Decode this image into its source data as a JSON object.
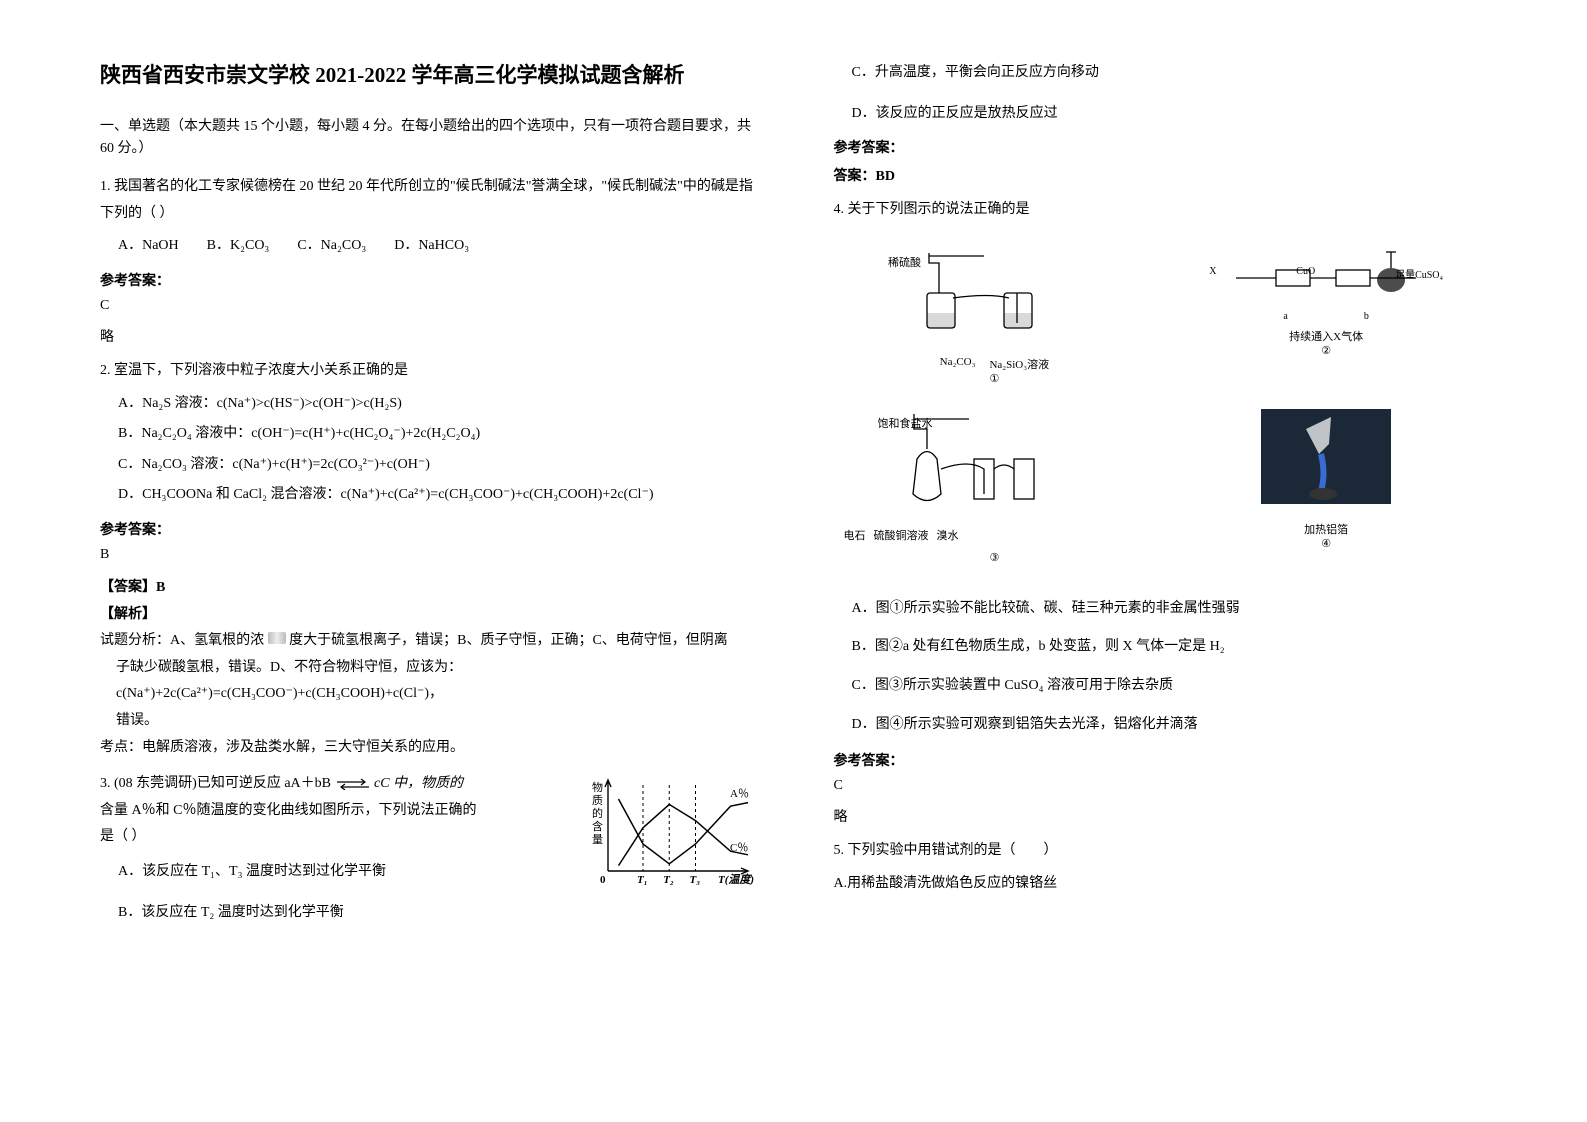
{
  "title": "陕西省西安市崇文学校 2021-2022 学年高三化学模拟试题含解析",
  "section_header": "一、单选题（本大题共 15 个小题，每小题 4 分。在每小题给出的四个选项中，只有一项符合题目要求，共 60 分。）",
  "answer_label": "参考答案：",
  "q1": {
    "stem": "1. 我国著名的化工专家候德榜在 20 世纪 20 年代所创立的\"候氏制碱法\"誉满全球，\"候氏制碱法\"中的碱是指下列的（  ）",
    "opts": {
      "A": "A．NaOH",
      "B": "B．K₂CO₃",
      "C": "C．Na₂CO₃",
      "D": "D．NaHCO₃"
    },
    "answer": "C",
    "brief": "略"
  },
  "q2": {
    "stem": "2. 室温下，下列溶液中粒子浓度大小关系正确的是",
    "opts": {
      "A": "A．Na₂S 溶液：c(Na⁺)>c(HS⁻)>c(OH⁻)>c(H₂S)",
      "B": "B．Na₂C₂O₄ 溶液中：c(OH⁻)=c(H⁺)+c(HC₂O₄⁻)+2c(H₂C₂O₄)",
      "C": "C．Na₂CO₃ 溶液：c(Na⁺)+c(H⁺)=2c(CO₃²⁻)+c(OH⁻)",
      "D": "D．CH₃COONa 和 CaCl₂ 混合溶液：c(Na⁺)+c(Ca²⁺)=c(CH₃COO⁻)+c(CH₃COOH)+2c(Cl⁻)"
    },
    "answer": "B",
    "analysis_tag_ans": "【答案】B",
    "analysis_tag": "【解析】",
    "analysis_line1": "试题分析：A、氢氧根的浓",
    "analysis_line1b": "度大于硫氢根离子，错误；B、质子守恒，正确；C、电荷守恒，但阴离",
    "analysis_line2": "子缺少碳酸氢根，错误。D、不符合物料守恒，应该为：c(Na⁺)+2c(Ca²⁺)=c(CH₃COO⁻)+c(CH₃COOH)+c(Cl⁻)，",
    "analysis_line3": "错误。",
    "analysis_point": "考点：电解质溶液，涉及盐类水解，三大守恒关系的应用。"
  },
  "q3": {
    "stem_a": "3. (08 东莞调研)已知可逆反应 aA＋bB",
    "stem_b": "cC 中，物质的",
    "stem_c": "含量 A％和 C％随温度的变化曲线如图所示，下列说法正确的",
    "stem_d": "是（  ）",
    "opts": {
      "A": "A．该反应在 T₁、T₃ 温度时达到过化学平衡",
      "B": "B．该反应在 T₂ 温度时达到化学平衡",
      "C": "C．升高温度，平衡会向正反应方向移动",
      "D": "D．该反应的正反应是放热反应过"
    },
    "chart": {
      "type": "line",
      "width": 170,
      "height": 110,
      "xaxis_label": "T(温度)",
      "yaxis_label": "物质的含量",
      "xticks": [
        "0",
        "T₁",
        "T₂",
        "T₃"
      ],
      "curves": {
        "A": {
          "label": "A％",
          "color": "#000000",
          "points": [
            [
              12,
              20
            ],
            [
              40,
              70
            ],
            [
              70,
              92
            ],
            [
              100,
              70
            ],
            [
              140,
              28
            ],
            [
              160,
              24
            ]
          ]
        },
        "C": {
          "label": "C％",
          "color": "#000000",
          "points": [
            [
              12,
              94
            ],
            [
              40,
              52
            ],
            [
              70,
              26
            ],
            [
              100,
              44
            ],
            [
              140,
              78
            ],
            [
              160,
              82
            ]
          ]
        }
      },
      "dashed_x": [
        40,
        70,
        100
      ],
      "line_width": 1.5,
      "background": "#ffffff"
    }
  },
  "q3_answer_label": "答案：BD",
  "q4": {
    "stem": "4. 关于下列图示的说法正确的是",
    "diagrams": {
      "d1": {
        "labels": [
          "稀硫酸",
          "Na₂CO₃",
          "Na₂SiO₃溶液"
        ],
        "idx": "①"
      },
      "d2": {
        "labels": [
          "足量CuSO₄",
          "CuO",
          "X",
          "a",
          "b",
          "持续通入X气体"
        ],
        "idx": "②"
      },
      "d3": {
        "labels": [
          "饱和食盐水",
          "电石",
          "硫酸铜溶液",
          "溴水"
        ],
        "idx": "③"
      },
      "d4": {
        "labels": [
          "加热铝箔"
        ],
        "idx": "④"
      }
    },
    "opts": {
      "A": "A．图①所示实验不能比较硫、碳、硅三种元素的非金属性强弱",
      "B": "B．图②a 处有红色物质生成，b 处变蓝，则 X 气体一定是 H₂",
      "C": "C．图③所示实验装置中 CuSO₄ 溶液可用于除去杂质",
      "D": "D．图④所示实验可观察到铝箔失去光泽，铝熔化并滴落"
    },
    "answer": "C",
    "brief": "略"
  },
  "q5": {
    "stem": "5. 下列实验中用错试剂的是（　　）",
    "optA": "A.用稀盐酸清洗做焰色反应的镍铬丝"
  },
  "colors": {
    "text": "#000000",
    "bg": "#ffffff",
    "axis": "#000000"
  }
}
